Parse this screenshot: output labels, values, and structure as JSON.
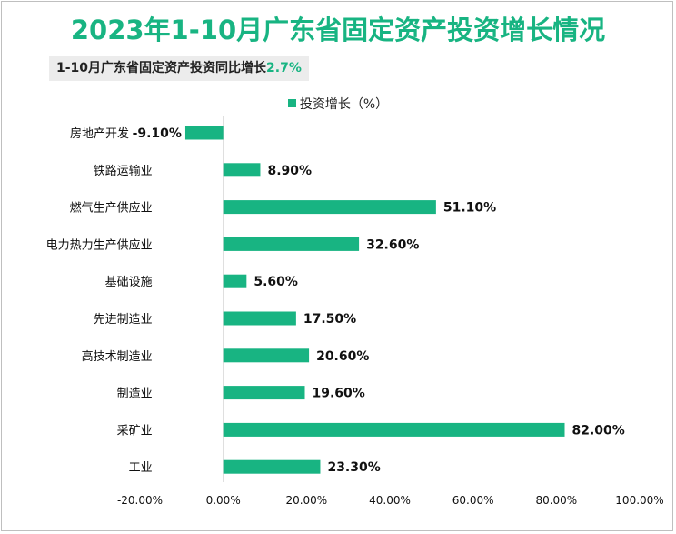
{
  "title": "2023年1-10月广东省固定资产投资增长情况",
  "subtitle": {
    "text": "1-10月广东省固定资产投资同比增长",
    "value": "2.7%"
  },
  "legend": {
    "label": "投资增长（%）"
  },
  "colors": {
    "accent": "#18b482",
    "axis": "#d9d9d9"
  },
  "chart_data": {
    "type": "bar",
    "orientation": "horizontal",
    "categories": [
      "房地产开发",
      "铁路运输业",
      "燃气生产供应业",
      "电力热力生产供应业",
      "基础设施",
      "先进制造业",
      "高技术制造业",
      "制造业",
      "采矿业",
      "工业"
    ],
    "series": [
      {
        "name": "投资增长（%）",
        "values": [
          -9.1,
          8.9,
          51.1,
          32.6,
          5.6,
          17.5,
          20.6,
          19.6,
          82.0,
          23.3
        ],
        "labels": [
          "-9.10%",
          "8.90%",
          "51.10%",
          "32.60%",
          "5.60%",
          "17.50%",
          "20.60%",
          "19.60%",
          "82.00%",
          "23.30%"
        ]
      }
    ],
    "xlim": [
      -20,
      100
    ],
    "xticks": [
      -20,
      0,
      20,
      40,
      60,
      80,
      100
    ],
    "xtick_labels": [
      "-20.00%",
      "0.00%",
      "20.00%",
      "40.00%",
      "60.00%",
      "80.00%",
      "100.00%"
    ],
    "grid": false,
    "legend_position": "top"
  }
}
